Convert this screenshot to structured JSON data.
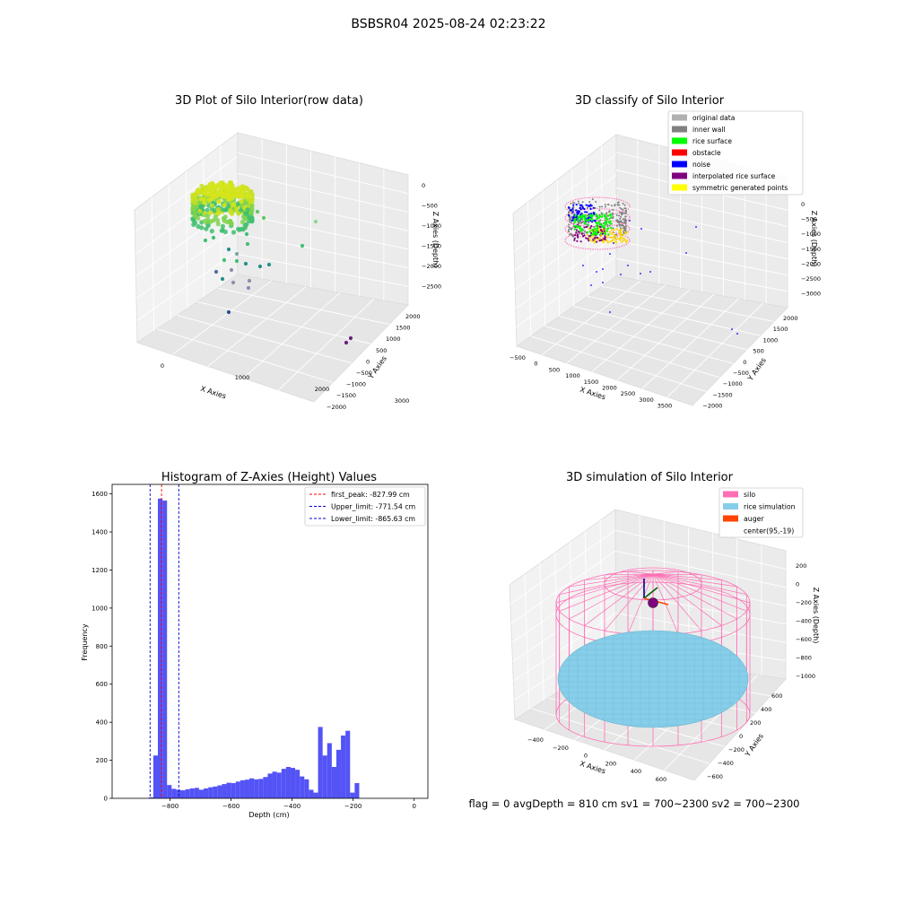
{
  "suptitle": "BSBSR04 2025-08-24 02:23:22",
  "footer": "flag = 0     avgDepth = 810 cm  sv1 = 700~2300  sv2 = 700~2300",
  "colors": {
    "histogram": "#4a4af5",
    "first_peak": "#ff0000",
    "limits": "#0000cc",
    "silo": "#ff6eb4",
    "rice_simulation": "#87ceeb",
    "auger": "#ff4500",
    "rice_surface": "#00ff00",
    "noise": "#0000ff",
    "interpolated": "#800080",
    "symmetric": "#ffff00",
    "original": "#b0b0b0",
    "inner_wall": "#808080",
    "obstacle": "#ff0000"
  },
  "chart_data": [
    {
      "type": "scatter",
      "projection": "3d",
      "title": "3D Plot of Silo Interior(row data)",
      "xlabel": "X Axies",
      "ylabel": "Y Axies",
      "zlabel": "Z Axies (Depth)",
      "x_ticks": [
        "0",
        "1000",
        "2000",
        "3000"
      ],
      "y_ticks": [
        "2000",
        "1500",
        "1000",
        "500",
        "0",
        "−500",
        "−1000",
        "−1500",
        "−2000"
      ],
      "z_ticks": [
        "0",
        "−500",
        "−1000",
        "−1500",
        "−2000",
        "−2500"
      ],
      "colormap": "viridis (by depth)",
      "grid": true
    },
    {
      "type": "scatter",
      "projection": "3d",
      "title": "3D classify of Silo Interior",
      "xlabel": "X Axies",
      "ylabel": "Y Axies",
      "zlabel": "Z Axies (Depth)",
      "x_ticks": [
        "−500",
        "0",
        "500",
        "1000",
        "1500",
        "2000",
        "2500",
        "3000",
        "3500"
      ],
      "y_ticks": [
        "2000",
        "1500",
        "1000",
        "500",
        "0",
        "−500",
        "−1000",
        "−1500",
        "−2000"
      ],
      "z_ticks": [
        "0",
        "−500",
        "−1000",
        "−1500",
        "−2000",
        "−2500",
        "−3000"
      ],
      "legend_position": "top-right",
      "legend": [
        {
          "label": "original data",
          "color": "#b0b0b0"
        },
        {
          "label": "inner wall",
          "color": "#808080"
        },
        {
          "label": "rice surface",
          "color": "#00ff00"
        },
        {
          "label": "obstacle",
          "color": "#ff0000"
        },
        {
          "label": "noise",
          "color": "#0000ff"
        },
        {
          "label": "interpolated rice surface",
          "color": "#800080"
        },
        {
          "label": "symmetric generated points",
          "color": "#ffff00"
        }
      ],
      "grid": true
    },
    {
      "type": "bar",
      "title": "Histogram of Z-Axies (Height) Values",
      "xlabel": "Depth (cm)",
      "ylabel": "Frequency",
      "xlim": [
        -990,
        45
      ],
      "ylim": [
        0,
        1650
      ],
      "x_ticks": [
        -800,
        -600,
        -400,
        -200,
        0
      ],
      "x_tick_labels": [
        "−800",
        "−600",
        "−400",
        "−200",
        "0"
      ],
      "y_ticks": [
        0,
        200,
        400,
        600,
        800,
        1000,
        1200,
        1400,
        1600
      ],
      "bin_width": 15,
      "bin_edges_start": -870,
      "values": [
        5,
        225,
        1575,
        1565,
        70,
        50,
        45,
        42,
        48,
        52,
        55,
        45,
        52,
        58,
        62,
        68,
        75,
        82,
        80,
        88,
        95,
        98,
        105,
        100,
        102,
        112,
        130,
        140,
        135,
        155,
        165,
        160,
        150,
        115,
        100,
        45,
        30,
        375,
        225,
        290,
        165,
        255,
        330,
        355,
        30,
        80
      ],
      "vlines": [
        {
          "x": -827.99,
          "label": "first_peak: -827.99 cm",
          "color": "#ff0000"
        },
        {
          "x": -771.54,
          "label": "Upper_limit: -771.54 cm",
          "color": "#0000cc"
        },
        {
          "x": -865.63,
          "label": "Lower_limit: -865.63 cm",
          "color": "#0000cc"
        }
      ],
      "legend_position": "top-right"
    },
    {
      "type": "surface",
      "projection": "3d",
      "title": "3D simulation of Silo Interior",
      "xlabel": "X Axies",
      "ylabel": "Y Axies",
      "zlabel": "Z Axies (Depth)",
      "x_ticks": [
        "−400",
        "−200",
        "0",
        "200",
        "400",
        "600"
      ],
      "y_ticks": [
        "600",
        "400",
        "200",
        "0",
        "−200",
        "−400",
        "−600"
      ],
      "z_ticks": [
        "200",
        "0",
        "−200",
        "−400",
        "−600",
        "−800",
        "−1000"
      ],
      "legend_position": "top-right",
      "legend": [
        {
          "label": "silo",
          "color": "#ff6eb4"
        },
        {
          "label": "rice simulation",
          "color": "#87ceeb"
        },
        {
          "label": "auger",
          "color": "#ff4500"
        },
        {
          "label": "center(95,-19)",
          "color": "none"
        }
      ],
      "grid": true
    }
  ]
}
